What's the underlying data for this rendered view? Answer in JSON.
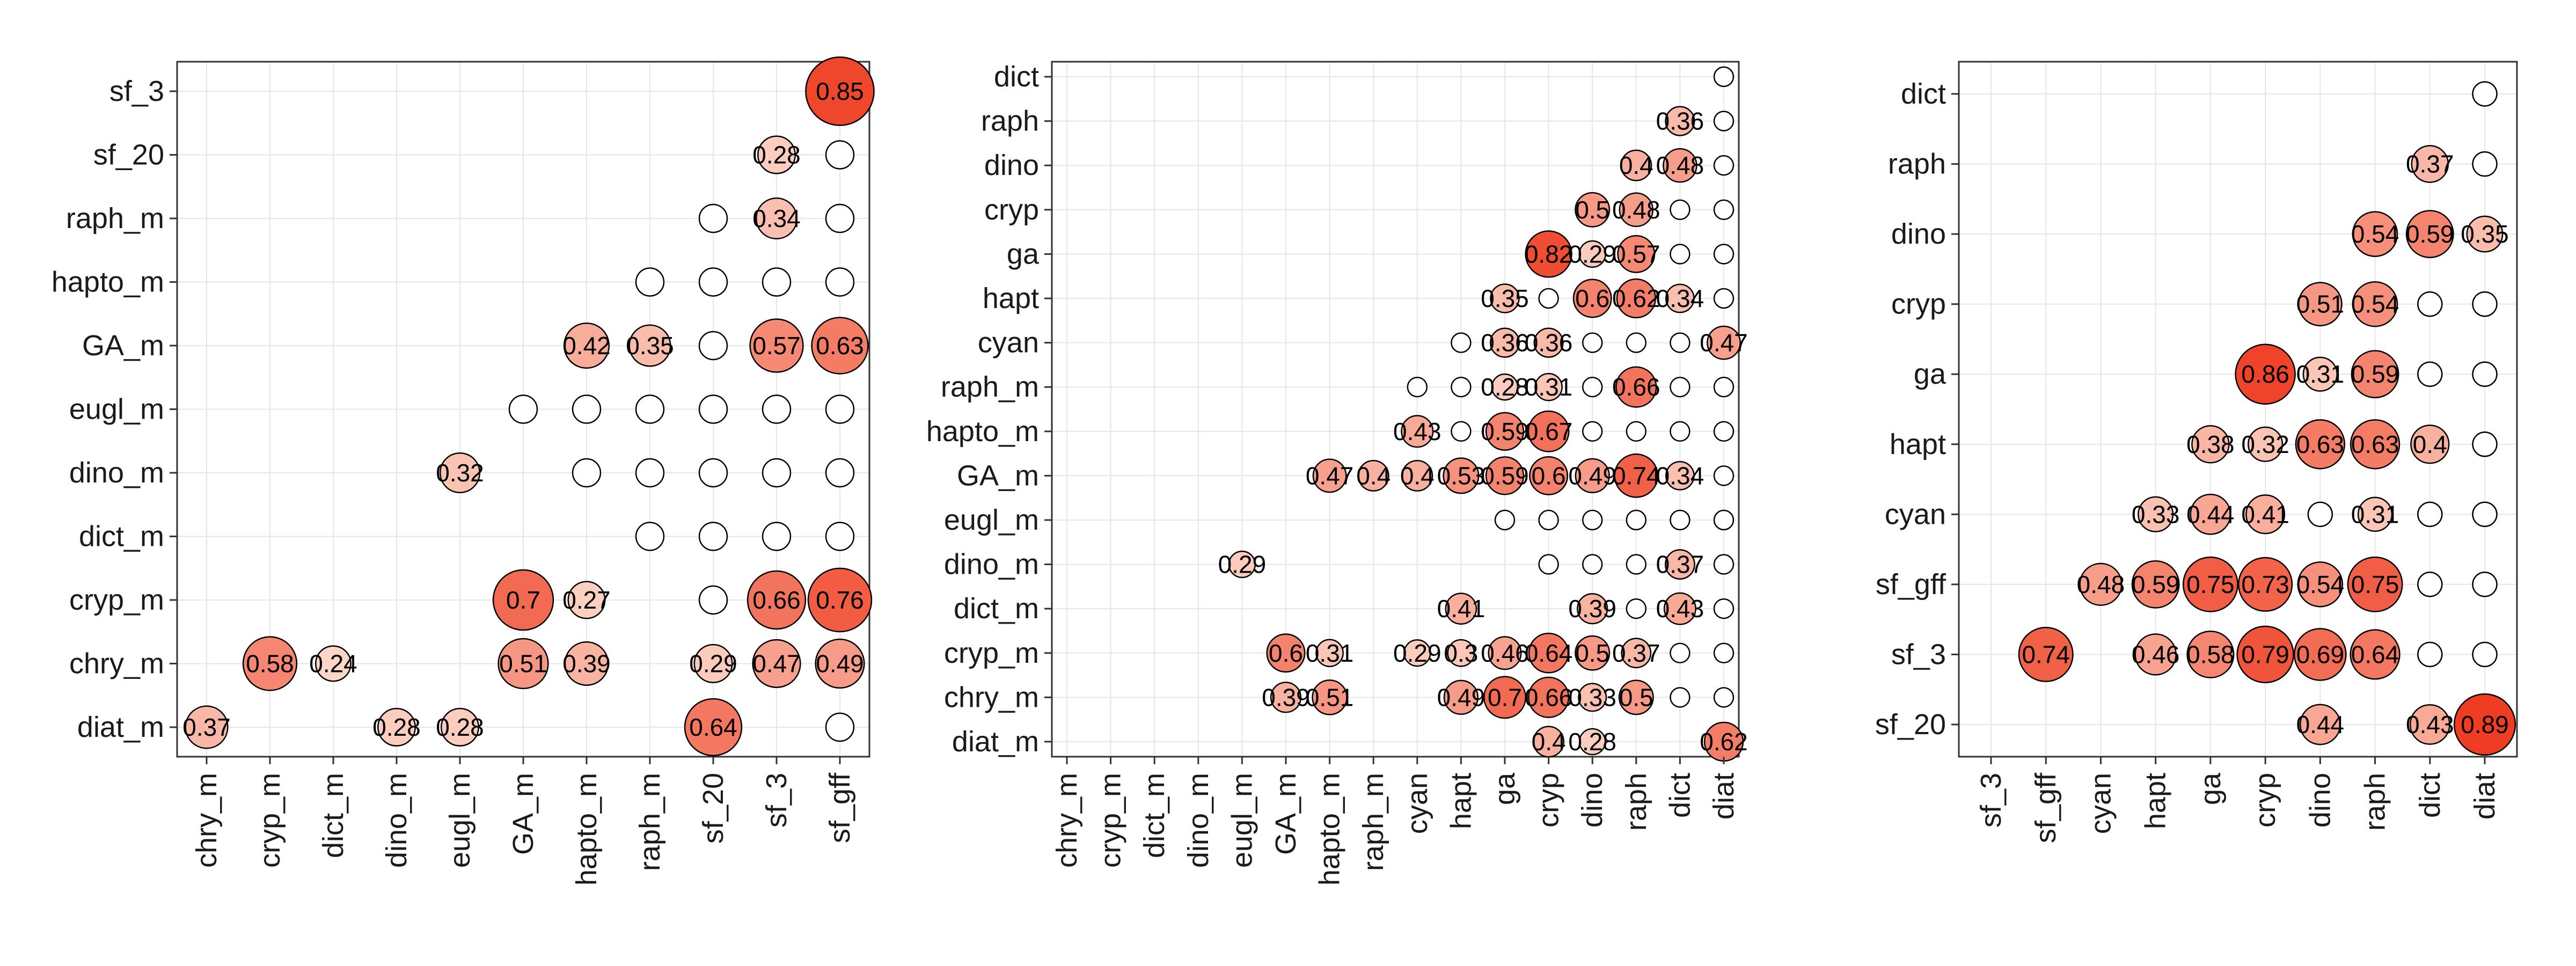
{
  "chart_data": [
    {
      "type": "bubble-correlation-matrix",
      "x_labels": [
        "chry_m",
        "cryp_m",
        "dict_m",
        "dino_m",
        "eugl_m",
        "GA_m",
        "hapto_m",
        "raph_m",
        "sf_20",
        "sf_3",
        "sf_gff"
      ],
      "y_labels": [
        "diat_m",
        "chry_m",
        "cryp_m",
        "dict_m",
        "dino_m",
        "eugl_m",
        "GA_m",
        "hapto_m",
        "raph_m",
        "sf_20",
        "sf_3"
      ],
      "values": [
        [
          0.37,
          null,
          null,
          0.28,
          0.28,
          null,
          null,
          null,
          0.64,
          null,
          null
        ],
        [
          null,
          0.58,
          0.24,
          null,
          null,
          0.51,
          0.39,
          null,
          0.29,
          0.47,
          0.49
        ],
        [
          null,
          null,
          null,
          null,
          null,
          0.7,
          0.27,
          null,
          null,
          0.66,
          0.76
        ],
        [
          null,
          null,
          null,
          null,
          null,
          null,
          null,
          null,
          null,
          null,
          null
        ],
        [
          null,
          null,
          null,
          null,
          0.32,
          null,
          null,
          null,
          null,
          null,
          null
        ],
        [
          null,
          null,
          null,
          null,
          null,
          null,
          null,
          null,
          null,
          null,
          null
        ],
        [
          null,
          null,
          null,
          null,
          null,
          null,
          0.42,
          0.35,
          null,
          0.57,
          0.63
        ],
        [
          null,
          null,
          null,
          null,
          null,
          null,
          null,
          null,
          null,
          null,
          null
        ],
        [
          null,
          null,
          null,
          null,
          null,
          null,
          null,
          null,
          null,
          0.34,
          null
        ],
        [
          null,
          null,
          null,
          null,
          null,
          null,
          null,
          null,
          null,
          0.28,
          null
        ],
        [
          null,
          null,
          null,
          null,
          null,
          null,
          null,
          null,
          null,
          null,
          0.85
        ]
      ],
      "color_low": "#fde0d2",
      "color_high": "#ee3b1f",
      "grid": true
    },
    {
      "type": "bubble-correlation-matrix",
      "x_labels": [
        "chry_m",
        "cryp_m",
        "dict_m",
        "dino_m",
        "eugl_m",
        "GA_m",
        "hapto_m",
        "raph_m",
        "cyan",
        "hapt",
        "ga",
        "cryp",
        "dino",
        "raph",
        "dict",
        "diat"
      ],
      "y_labels": [
        "diat_m",
        "chry_m",
        "cryp_m",
        "dict_m",
        "dino_m",
        "eugl_m",
        "GA_m",
        "hapto_m",
        "raph_m",
        "cyan",
        "hapt",
        "ga",
        "cryp",
        "dino",
        "raph",
        "dict"
      ],
      "values": [
        [
          null,
          null,
          null,
          null,
          null,
          null,
          null,
          null,
          null,
          null,
          null,
          0.4,
          0.28,
          null,
          null,
          0.62
        ],
        [
          null,
          null,
          null,
          null,
          null,
          0.39,
          0.51,
          null,
          null,
          0.49,
          0.7,
          0.66,
          0.33,
          0.5,
          null,
          null
        ],
        [
          null,
          null,
          null,
          null,
          null,
          0.6,
          0.31,
          null,
          0.29,
          0.3,
          0.46,
          0.64,
          0.5,
          0.37,
          null,
          null
        ],
        [
          null,
          null,
          null,
          null,
          null,
          null,
          null,
          null,
          null,
          0.41,
          null,
          null,
          0.39,
          null,
          0.43,
          null
        ],
        [
          null,
          null,
          null,
          null,
          0.29,
          null,
          null,
          null,
          null,
          null,
          null,
          null,
          null,
          null,
          0.37,
          null
        ],
        [
          null,
          null,
          null,
          null,
          null,
          null,
          null,
          null,
          null,
          null,
          null,
          null,
          null,
          null,
          null,
          null
        ],
        [
          null,
          null,
          null,
          null,
          null,
          null,
          0.47,
          0.4,
          0.4,
          0.53,
          0.59,
          0.6,
          0.49,
          0.74,
          0.34,
          null
        ],
        [
          null,
          null,
          null,
          null,
          null,
          null,
          null,
          null,
          0.43,
          null,
          0.59,
          0.67,
          null,
          null,
          null,
          null
        ],
        [
          null,
          null,
          null,
          null,
          null,
          null,
          null,
          null,
          null,
          null,
          0.28,
          0.31,
          null,
          0.66,
          null,
          null
        ],
        [
          null,
          null,
          null,
          null,
          null,
          null,
          null,
          null,
          null,
          null,
          0.36,
          0.36,
          null,
          null,
          null,
          0.47
        ],
        [
          null,
          null,
          null,
          null,
          null,
          null,
          null,
          null,
          null,
          null,
          0.35,
          null,
          0.6,
          0.62,
          0.34,
          null
        ],
        [
          null,
          null,
          null,
          null,
          null,
          null,
          null,
          null,
          null,
          null,
          null,
          0.82,
          0.29,
          0.57,
          null,
          null
        ],
        [
          null,
          null,
          null,
          null,
          null,
          null,
          null,
          null,
          null,
          null,
          null,
          null,
          0.5,
          0.48,
          null,
          null
        ],
        [
          null,
          null,
          null,
          null,
          null,
          null,
          null,
          null,
          null,
          null,
          null,
          null,
          null,
          0.4,
          0.48,
          null
        ],
        [
          null,
          null,
          null,
          null,
          null,
          null,
          null,
          null,
          null,
          null,
          null,
          null,
          null,
          null,
          0.36,
          null
        ],
        [
          null,
          null,
          null,
          null,
          null,
          null,
          null,
          null,
          null,
          null,
          null,
          null,
          null,
          null,
          null,
          null
        ]
      ],
      "color_low": "#fde0d2",
      "color_high": "#ee3b1f",
      "grid": true
    },
    {
      "type": "bubble-correlation-matrix",
      "x_labels": [
        "sf_3",
        "sf_gff",
        "cyan",
        "hapt",
        "ga",
        "cryp",
        "dino",
        "raph",
        "dict",
        "diat"
      ],
      "y_labels": [
        "sf_20",
        "sf_3",
        "sf_gff",
        "cyan",
        "hapt",
        "ga",
        "cryp",
        "dino",
        "raph",
        "dict"
      ],
      "values": [
        [
          null,
          null,
          null,
          null,
          null,
          null,
          0.44,
          null,
          0.43,
          0.89
        ],
        [
          null,
          0.74,
          null,
          0.46,
          0.58,
          0.79,
          0.69,
          0.64,
          null,
          null
        ],
        [
          null,
          null,
          0.48,
          0.59,
          0.75,
          0.73,
          0.54,
          0.75,
          null,
          null
        ],
        [
          null,
          null,
          null,
          0.33,
          0.44,
          0.41,
          null,
          0.31,
          null,
          null
        ],
        [
          null,
          null,
          null,
          null,
          0.38,
          0.32,
          0.63,
          0.63,
          0.4,
          null
        ],
        [
          null,
          null,
          null,
          null,
          null,
          0.86,
          0.31,
          0.59,
          null,
          null
        ],
        [
          null,
          null,
          null,
          null,
          null,
          null,
          0.51,
          0.54,
          null,
          null
        ],
        [
          null,
          null,
          null,
          null,
          null,
          null,
          null,
          0.54,
          0.59,
          0.35
        ],
        [
          null,
          null,
          null,
          null,
          null,
          null,
          null,
          null,
          0.37,
          null
        ],
        [
          null,
          null,
          null,
          null,
          null,
          null,
          null,
          null,
          null,
          null
        ]
      ],
      "color_low": "#fde0d2",
      "color_high": "#ee3b1f",
      "grid": true
    }
  ]
}
